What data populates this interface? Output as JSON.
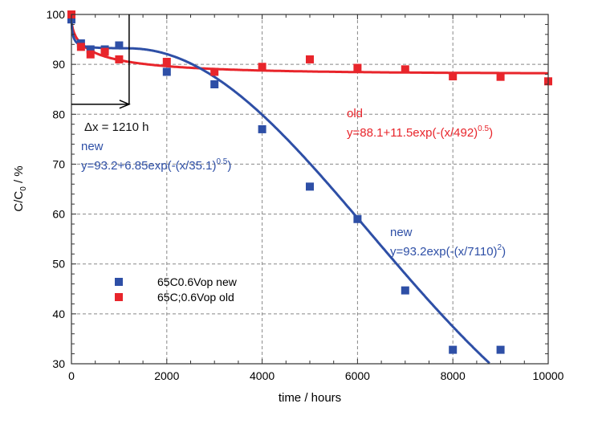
{
  "chart_data": {
    "type": "scatter",
    "xlabel": "time  / hours",
    "ylabel_main": "C/C",
    "ylabel_sub": "0",
    "ylabel_unit": "  /  %",
    "xlim": [
      0,
      10000
    ],
    "ylim": [
      30,
      100
    ],
    "xticks": [
      0,
      2000,
      4000,
      6000,
      8000,
      10000
    ],
    "yticks": [
      30,
      40,
      50,
      60,
      70,
      80,
      90,
      100
    ],
    "grid": true,
    "legend_position": "lower-left",
    "series": [
      {
        "name": "65C0.6Vop new",
        "color": "#2e4fa6",
        "marker": "square",
        "x": [
          0,
          200,
          400,
          700,
          1000,
          2000,
          3000,
          4000,
          5000,
          6000,
          7000,
          8000,
          9000
        ],
        "y": [
          99,
          94.2,
          93,
          93,
          93.8,
          88.5,
          86,
          77,
          65.5,
          59,
          44.7,
          32.8,
          32.8
        ]
      },
      {
        "name": "65C;0.6Vop old",
        "color": "#e8252b",
        "marker": "square",
        "x": [
          0,
          200,
          400,
          700,
          1000,
          2000,
          3000,
          4000,
          5000,
          6000,
          7000,
          8000,
          9000,
          10000
        ],
        "y": [
          100,
          93.5,
          92,
          92.5,
          91,
          90.5,
          88.5,
          89.5,
          91,
          89.3,
          89,
          87.6,
          87.5,
          86.6
        ]
      }
    ],
    "fits": [
      {
        "label": "new",
        "formula": "y=93.2+6.85exp(-(x/35.1)",
        "exponent": "0.5",
        "close": ")",
        "color": "#2e4fa6"
      },
      {
        "label": "new",
        "formula": "y=93.2exp(-(x/7110)",
        "exponent": "2",
        "close": ")",
        "color": "#2e4fa6"
      },
      {
        "label": "old",
        "formula": "y=88.1+11.5exp(-(x/492)",
        "exponent": "0.5",
        "close": ")",
        "color": "#e8252b"
      }
    ],
    "annotation": {
      "text": "Δx = 1210 h",
      "shift": 1210,
      "level": 82
    }
  }
}
